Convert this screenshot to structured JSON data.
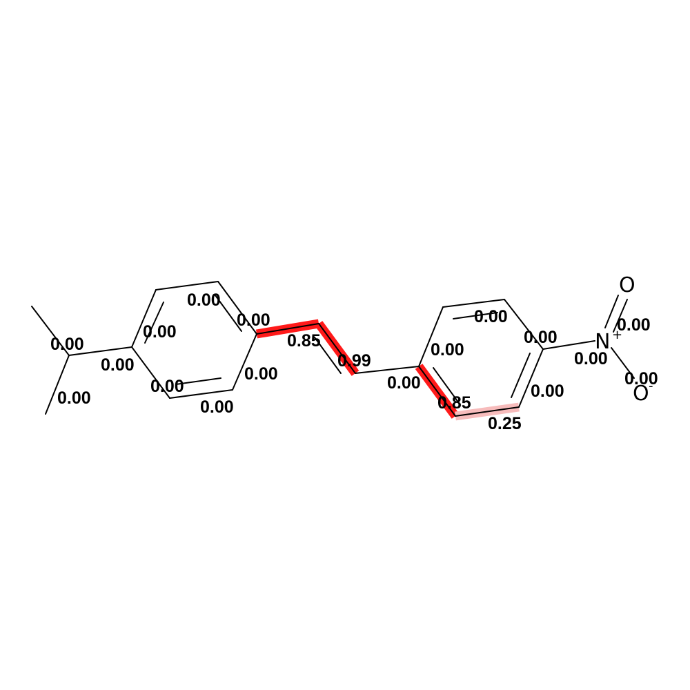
{
  "atoms": {
    "n": "N",
    "n_charge": "+",
    "o_double": "O",
    "o_single": "O",
    "o_charge": "-"
  },
  "bond_weights": {
    "methyl_a": "0.00",
    "methyl_b": "0.00",
    "isopropyl_ring": "0.00",
    "ringA_top_left": "0.00",
    "ringA_top": "0.00",
    "ringA_top_right": "0.00",
    "ringA_right": "0.00",
    "ringA_bottom": "0.00",
    "ringA_bottom_left": "0.00",
    "vinyl_first": "0.85",
    "vinyl_double": "0.99",
    "vinyl_ringB": "0.00",
    "ringB_left_upper": "0.00",
    "ringB_top": "0.00",
    "ringB_top_right": "0.00",
    "ringB_left_lower": "0.85",
    "ringB_bottom": "0.25",
    "ringB_right_lower": "0.00",
    "nitro_link": "0.00",
    "no_double": "0.00",
    "no_single": "0.00"
  },
  "colors": {
    "strong_highlight": "#ff1a1a",
    "weak_highlight": "#f7bcbc",
    "bond": "#000000"
  }
}
